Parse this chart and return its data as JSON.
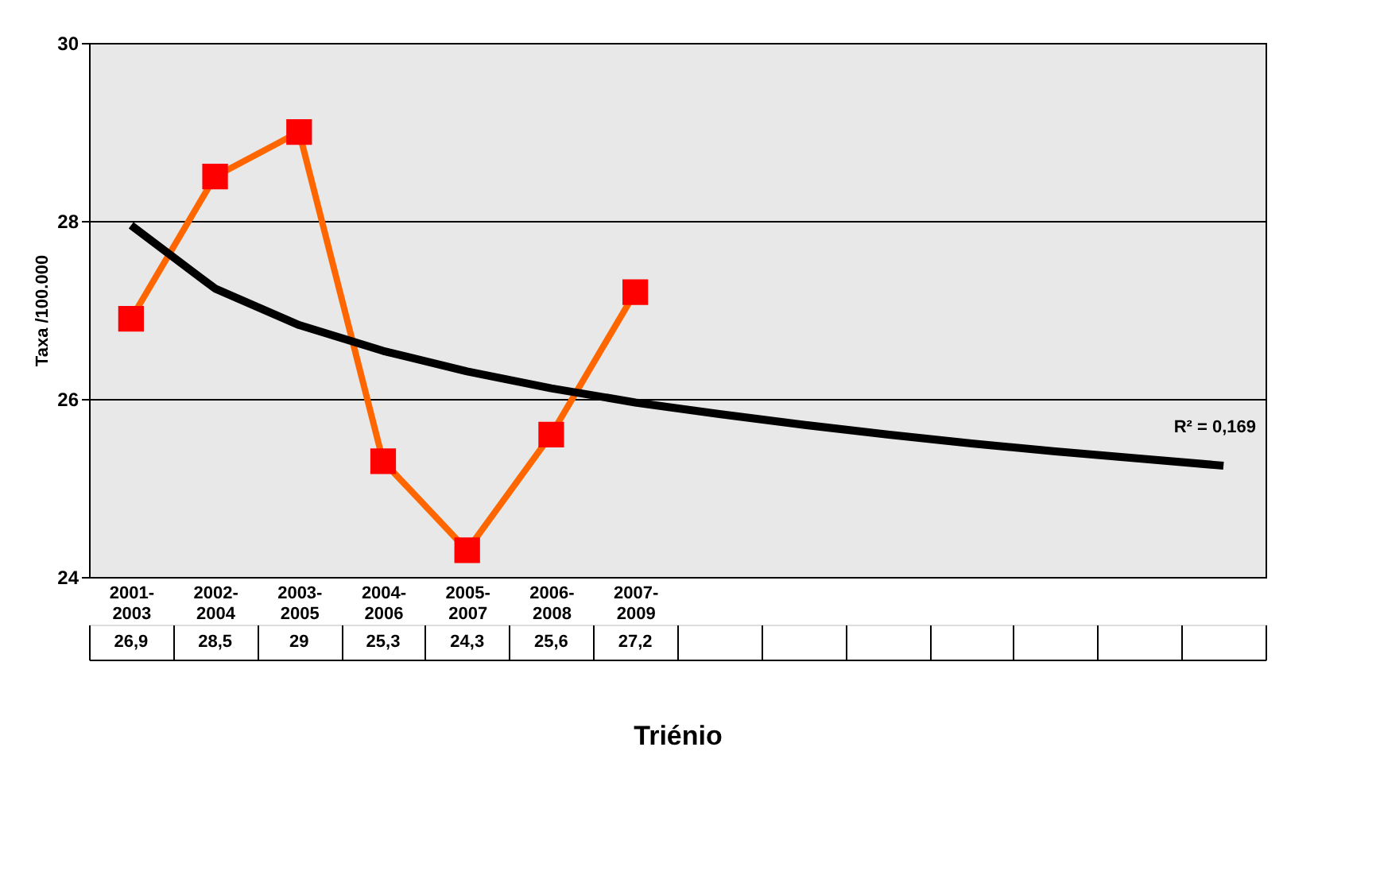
{
  "chart_data": {
    "type": "line",
    "xlabel": "Triénio",
    "ylabel": "Taxa /100.000",
    "categories": [
      "2001-2003",
      "2002-2004",
      "2003-2005",
      "2004-2006",
      "2005-2007",
      "2006-2008",
      "2007-2009",
      null,
      null,
      null,
      null,
      null,
      null,
      null
    ],
    "series": [
      {
        "color": "#ff6600",
        "colors": [
          "#ff0000",
          "#ff0000",
          "#ff0000",
          "#ff0000",
          "#ff0000",
          "#ff0000",
          "#ff0000",
          null,
          null,
          null,
          null,
          null,
          null,
          null
        ],
        "marker": "square",
        "values": [
          26.9,
          28.5,
          29,
          25.3,
          24.3,
          25.6,
          27.2,
          null,
          null,
          null,
          null,
          null,
          null,
          null
        ],
        "value_labels": [
          "26,9",
          "28,5",
          "29",
          "25,3",
          "24,3",
          "25,6",
          "27,2",
          null,
          null,
          null,
          null,
          null,
          null,
          null
        ]
      },
      {
        "color": "#000000",
        "marker": "none",
        "values": [
          27.95,
          27.24,
          26.83,
          26.54,
          26.31,
          26.12,
          25.96,
          25.83,
          25.71,
          25.6,
          25.5,
          25.41,
          25.33,
          25.25
        ]
      }
    ],
    "ylim": [
      24,
      30
    ],
    "yticks": [
      24,
      26,
      28,
      30
    ],
    "grid": "y",
    "annotations": [
      "R² = 0,169"
    ]
  }
}
